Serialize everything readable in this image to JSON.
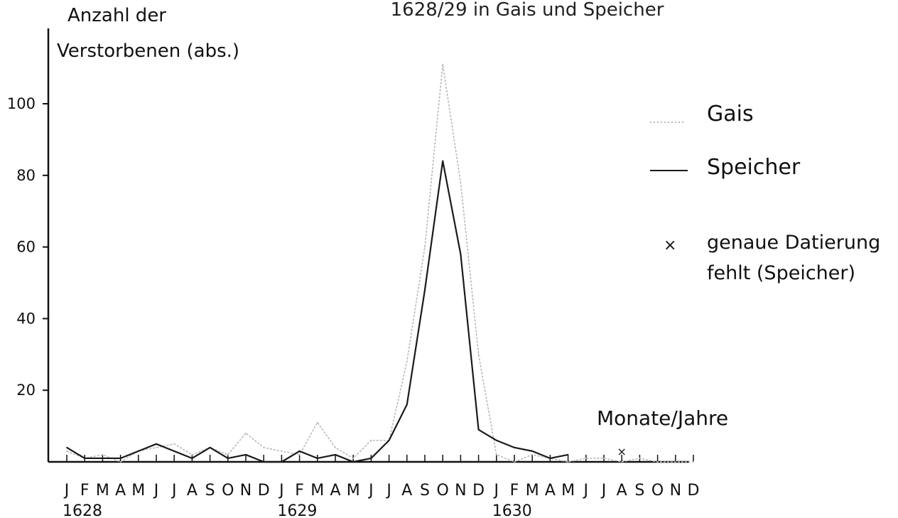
{
  "chart_data": {
    "type": "line",
    "title": "1628/29 in Gais und Speicher",
    "ylabel_line1": "Anzahl der",
    "ylabel_line2": "Verstorbenen (abs.)",
    "xlabel": "Monate/Jahre",
    "ylim": [
      0,
      115
    ],
    "yticks": [
      20,
      40,
      60,
      80,
      100
    ],
    "categories": [
      "J",
      "F",
      "M",
      "A",
      "M",
      "J",
      "J",
      "A",
      "S",
      "O",
      "N",
      "D",
      "J",
      "F",
      "M",
      "A",
      "M",
      "J",
      "J",
      "A",
      "S",
      "O",
      "N",
      "D",
      "J",
      "F",
      "M",
      "A",
      "M",
      "J",
      "J",
      "A",
      "S",
      "O",
      "N",
      "D"
    ],
    "years": [
      {
        "label": "1628",
        "index": 0
      },
      {
        "label": "1629",
        "index": 12
      },
      {
        "label": "1630",
        "index": 24
      }
    ],
    "series": [
      {
        "name": "Gais",
        "color": "#b8b8b8",
        "values": [
          3,
          1,
          2,
          0,
          3,
          4,
          5,
          2,
          4,
          2,
          8,
          4,
          3,
          2,
          11,
          4,
          1,
          6,
          6,
          28,
          60,
          111,
          78,
          30,
          2,
          0,
          2,
          1,
          0,
          1,
          1,
          0,
          1,
          0,
          0,
          0
        ]
      },
      {
        "name": "Speicher",
        "color": "#1a1a1a",
        "values": [
          4,
          1,
          1,
          1,
          3,
          5,
          3,
          1,
          4,
          1,
          2,
          0,
          0,
          3,
          1,
          2,
          0,
          1,
          6,
          16,
          48,
          84,
          58,
          9,
          6,
          4,
          3,
          1,
          2,
          null,
          null,
          null,
          null,
          null,
          null,
          null
        ]
      }
    ],
    "undated_marker": {
      "symbol": "×",
      "index": 31,
      "value": 3
    },
    "legend": {
      "placement": "right",
      "entries": [
        {
          "label": "Gais"
        },
        {
          "label": "Speicher"
        },
        {
          "label_line1": "genaue Datierung",
          "label_line2": "fehlt (Speicher)",
          "symbol": "×"
        }
      ]
    }
  }
}
